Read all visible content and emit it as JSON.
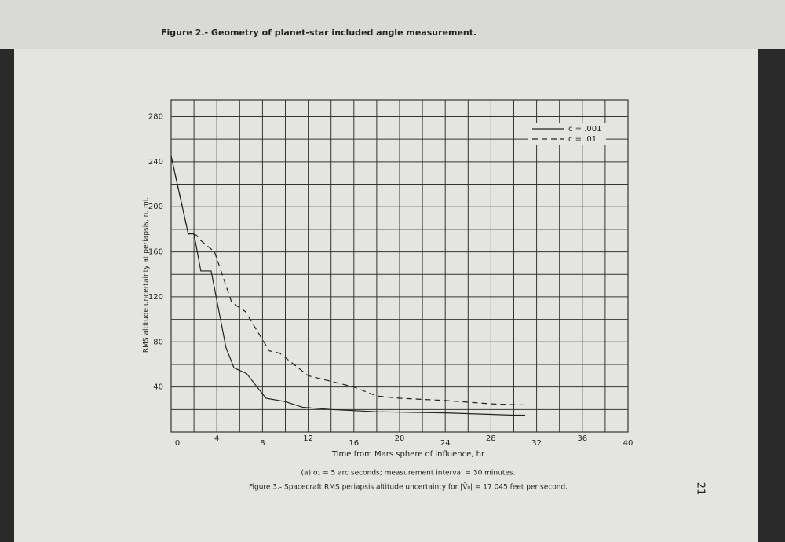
{
  "chart_data": {
    "type": "line",
    "header": "Figure 2.- Geometry of planet-star included angle measurement.",
    "xlabel": "Time from Mars sphere of influence, hr",
    "ylabel": "RMS altitude uncertainty at periapsis, n. mi.",
    "subcaption": "(a) σ₁ = 5 arc seconds; measurement interval = 30 minutes.",
    "caption": "Figure 3.- Spacecraft RMS periapsis altitude uncertainty for |V̄₀| = 17 045 feet per second.",
    "page_number": "21",
    "xlim": [
      0,
      40
    ],
    "ylim": [
      0,
      295
    ],
    "xticks": [
      0,
      4,
      8,
      12,
      16,
      20,
      24,
      28,
      32,
      36,
      40
    ],
    "yticks": [
      40,
      80,
      120,
      160,
      200,
      240,
      280
    ],
    "minor_xticks": [
      2,
      6,
      10,
      14,
      18,
      22,
      26,
      30,
      34,
      38
    ],
    "minor_yticks": [
      20,
      60,
      100,
      140,
      180,
      220,
      260
    ],
    "grid": true,
    "legend": "upper right",
    "series": [
      {
        "name": "c = .001",
        "color": "#222222",
        "dash": false,
        "x": [
          0,
          1.5,
          2,
          2.6,
          3.5,
          4.8,
          5.5,
          6.6,
          8.3,
          10,
          11.5,
          14,
          18,
          24,
          30,
          31
        ],
        "values": [
          245,
          176,
          176,
          143,
          143,
          75,
          57,
          52,
          30,
          27,
          22,
          20,
          18,
          17,
          15,
          15
        ]
      },
      {
        "name": "c = .01",
        "color": "#222222",
        "dash": true,
        "x": [
          0,
          1.5,
          2.2,
          2.6,
          3.8,
          5.3,
          6.5,
          8.6,
          9.5,
          11,
          12,
          14,
          16,
          18,
          20,
          24,
          28,
          31
        ],
        "values": [
          245,
          176,
          175,
          170,
          160,
          115,
          107,
          72,
          70,
          58,
          50,
          45,
          40,
          32,
          30,
          28,
          25,
          24
        ]
      }
    ]
  }
}
